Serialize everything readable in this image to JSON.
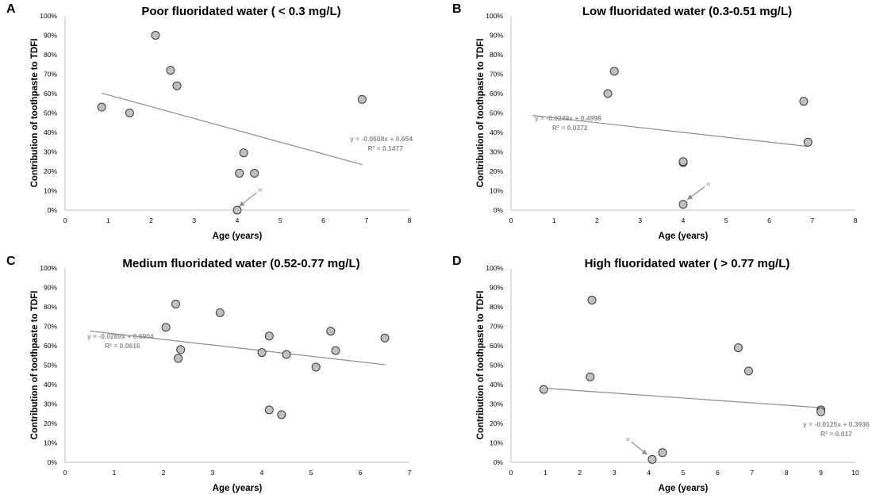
{
  "figure": {
    "ylabel": "Contribution of toothpaste to TDFI",
    "xlabel": "Age (years)",
    "y_ticks": [
      "0%",
      "10%",
      "20%",
      "30%",
      "40%",
      "50%",
      "60%",
      "70%",
      "80%",
      "90%",
      "100%"
    ]
  },
  "chart_data": [
    {
      "letter": "A",
      "type": "scatter",
      "title": "Poor fluoridated water ( < 0.3 mg/L)",
      "xlabel": "Age (years)",
      "ylabel": "Contribution of toothpaste to TDFI",
      "xlim": [
        0,
        8
      ],
      "ylim": [
        0,
        100
      ],
      "x_ticks": [
        "0",
        "1",
        "2",
        "3",
        "4",
        "5",
        "6",
        "7",
        "8"
      ],
      "points": [
        [
          0.85,
          53
        ],
        [
          1.5,
          50
        ],
        [
          2.1,
          90
        ],
        [
          2.45,
          72
        ],
        [
          2.6,
          64
        ],
        [
          4.0,
          0
        ],
        [
          4.05,
          19
        ],
        [
          4.15,
          29.5
        ],
        [
          4.4,
          19
        ],
        [
          6.9,
          57
        ]
      ],
      "trendline": {
        "x": [
          0.85,
          6.9
        ],
        "slope": -0.0608,
        "intercept": 0.654
      },
      "equation": "y = -0.0608x + 0.654",
      "r_squared": "R² = 0.1477",
      "annotation": {
        "symbol": "¤",
        "x": 4.45,
        "y": 9,
        "to_x": 4.05,
        "to_y": 2
      }
    },
    {
      "letter": "B",
      "type": "scatter",
      "title": "Low fluoridated water (0.3-0.51 mg/L)",
      "xlabel": "Age (years)",
      "ylabel": "Contribution of toothpaste to TDFI",
      "xlim": [
        0,
        8
      ],
      "ylim": [
        0,
        100
      ],
      "x_ticks": [
        "0",
        "1",
        "2",
        "3",
        "4",
        "5",
        "6",
        "7",
        "8"
      ],
      "points": [
        [
          2.25,
          60
        ],
        [
          2.4,
          71.5
        ],
        [
          4.0,
          3
        ],
        [
          4.0,
          24.5
        ],
        [
          4.0,
          25
        ],
        [
          6.8,
          56
        ],
        [
          6.9,
          35
        ]
      ],
      "trendline": {
        "x": [
          0.5,
          6.9
        ],
        "slope": -0.0249,
        "intercept": 0.4998
      },
      "equation": "y = -0.0249x + 0.4998",
      "r_squared": "R² = 0.0372",
      "annotation": {
        "symbol": "¤",
        "x": 4.5,
        "y": 12,
        "to_x": 4.1,
        "to_y": 5.5
      }
    },
    {
      "letter": "C",
      "type": "scatter",
      "title": "Medium fluoridated water (0.52-0.77 mg/L)",
      "xlabel": "Age (years)",
      "ylabel": "Contribution of toothpaste to TDFI",
      "xlim": [
        0,
        7
      ],
      "ylim": [
        0,
        100
      ],
      "x_ticks": [
        "0",
        "1",
        "2",
        "3",
        "4",
        "5",
        "6",
        "7"
      ],
      "points": [
        [
          2.05,
          69.5
        ],
        [
          2.25,
          81.5
        ],
        [
          2.3,
          53.5
        ],
        [
          2.35,
          58
        ],
        [
          3.15,
          77
        ],
        [
          4.0,
          56.5
        ],
        [
          4.15,
          65
        ],
        [
          4.15,
          27
        ],
        [
          4.4,
          24.5
        ],
        [
          4.5,
          55.5
        ],
        [
          5.1,
          49
        ],
        [
          5.4,
          67.5
        ],
        [
          5.5,
          57.5
        ],
        [
          6.5,
          64
        ]
      ],
      "trendline": {
        "x": [
          0.5,
          6.5
        ],
        "slope": -0.0289,
        "intercept": 0.6904
      },
      "equation": "y = -0.0289x + 0.6904",
      "r_squared": "R² = 0.0616",
      "annotation": null
    },
    {
      "letter": "D",
      "type": "scatter",
      "title": "High fluoridated water ( > 0.77 mg/L)",
      "xlabel": "Age (years)",
      "ylabel": "Contribution of toothpaste to TDFI",
      "xlim": [
        0,
        10
      ],
      "ylim": [
        0,
        100
      ],
      "x_ticks": [
        "0",
        "1",
        "2",
        "3",
        "4",
        "5",
        "6",
        "7",
        "8",
        "9",
        "10"
      ],
      "points": [
        [
          0.95,
          37.5
        ],
        [
          2.3,
          44
        ],
        [
          2.35,
          83.5
        ],
        [
          4.1,
          1.5
        ],
        [
          4.4,
          5
        ],
        [
          6.6,
          59
        ],
        [
          6.9,
          47
        ],
        [
          9.0,
          27
        ],
        [
          9.0,
          26
        ]
      ],
      "trendline": {
        "x": [
          0.95,
          9.0
        ],
        "slope": -0.0125,
        "intercept": 0.3936
      },
      "equation": "y = -0.0125x + 0.3936",
      "r_squared": "R² = 0.017",
      "annotation": {
        "symbol": "¤",
        "x": 3.5,
        "y": 10.5,
        "to_x": 3.95,
        "to_y": 4
      }
    }
  ]
}
